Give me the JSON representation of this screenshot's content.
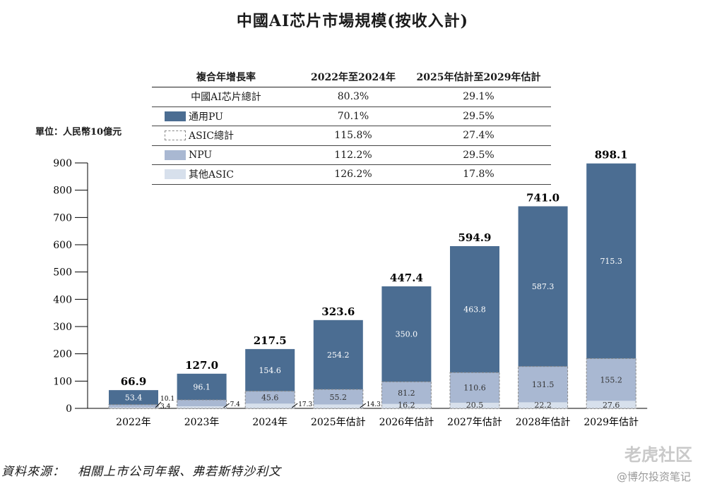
{
  "title": "中國AI芯片市場規模(按收入計)",
  "unit_label": "單位：人民幣10億元",
  "source": "資料來源：　相關上市公司年報、弗若斯特沙利文",
  "watermark": {
    "top": "老虎社区",
    "bottom": "@博尔投资笔记"
  },
  "cagr_table": {
    "header": [
      "複合年增長率",
      "2022年至2024年",
      "2025年估計至2029年估計"
    ],
    "rows": [
      {
        "label": "中國AI芯片總計",
        "v1": "80.3%",
        "v2": "29.1%",
        "swatch": "none"
      },
      {
        "label": "通用PU",
        "v1": "70.1%",
        "v2": "29.5%",
        "swatch": "gpu"
      },
      {
        "label": "ASIC總計",
        "v1": "115.8%",
        "v2": "27.4%",
        "swatch": "asic"
      },
      {
        "label": "NPU",
        "v1": "112.2%",
        "v2": "29.5%",
        "swatch": "npu"
      },
      {
        "label": "其他ASIC",
        "v1": "126.2%",
        "v2": "17.8%",
        "swatch": "other"
      }
    ]
  },
  "colors": {
    "gpu": "#4b6d92",
    "npu": "#a9b8d2",
    "other": "#d7e0ec",
    "asic_border": "#888888"
  },
  "chart_data": {
    "type": "bar",
    "stacked": true,
    "categories": [
      "2022年",
      "2023年",
      "2024年",
      "2025年估計",
      "2026年估計",
      "2027年估計",
      "2028年估計",
      "2029年估計"
    ],
    "ylim": [
      0,
      900
    ],
    "yticks": [
      0,
      100,
      200,
      300,
      400,
      500,
      600,
      700,
      800,
      900
    ],
    "totals": [
      66.9,
      127.0,
      217.5,
      323.6,
      447.4,
      594.9,
      741.0,
      898.1
    ],
    "series": [
      {
        "name": "其他ASIC",
        "key": "other",
        "values": [
          3.4,
          7.4,
          17.3,
          14.3,
          16.2,
          20.5,
          22.2,
          27.6
        ]
      },
      {
        "name": "NPU",
        "key": "npu",
        "values": [
          10.1,
          23.6,
          45.6,
          55.2,
          81.2,
          110.6,
          131.5,
          155.2
        ]
      },
      {
        "name": "通用PU",
        "key": "gpu",
        "values": [
          53.4,
          96.1,
          154.6,
          254.2,
          350.0,
          463.8,
          587.3,
          715.3
        ]
      }
    ],
    "outside_labels": [
      {
        "category": 0,
        "values": [
          "10.1",
          "3.4"
        ]
      },
      {
        "category": 1,
        "values": [
          "7.4"
        ]
      },
      {
        "category": 2,
        "values": [
          "17.3"
        ]
      },
      {
        "category": 3,
        "values": [
          "14.3"
        ]
      }
    ]
  }
}
